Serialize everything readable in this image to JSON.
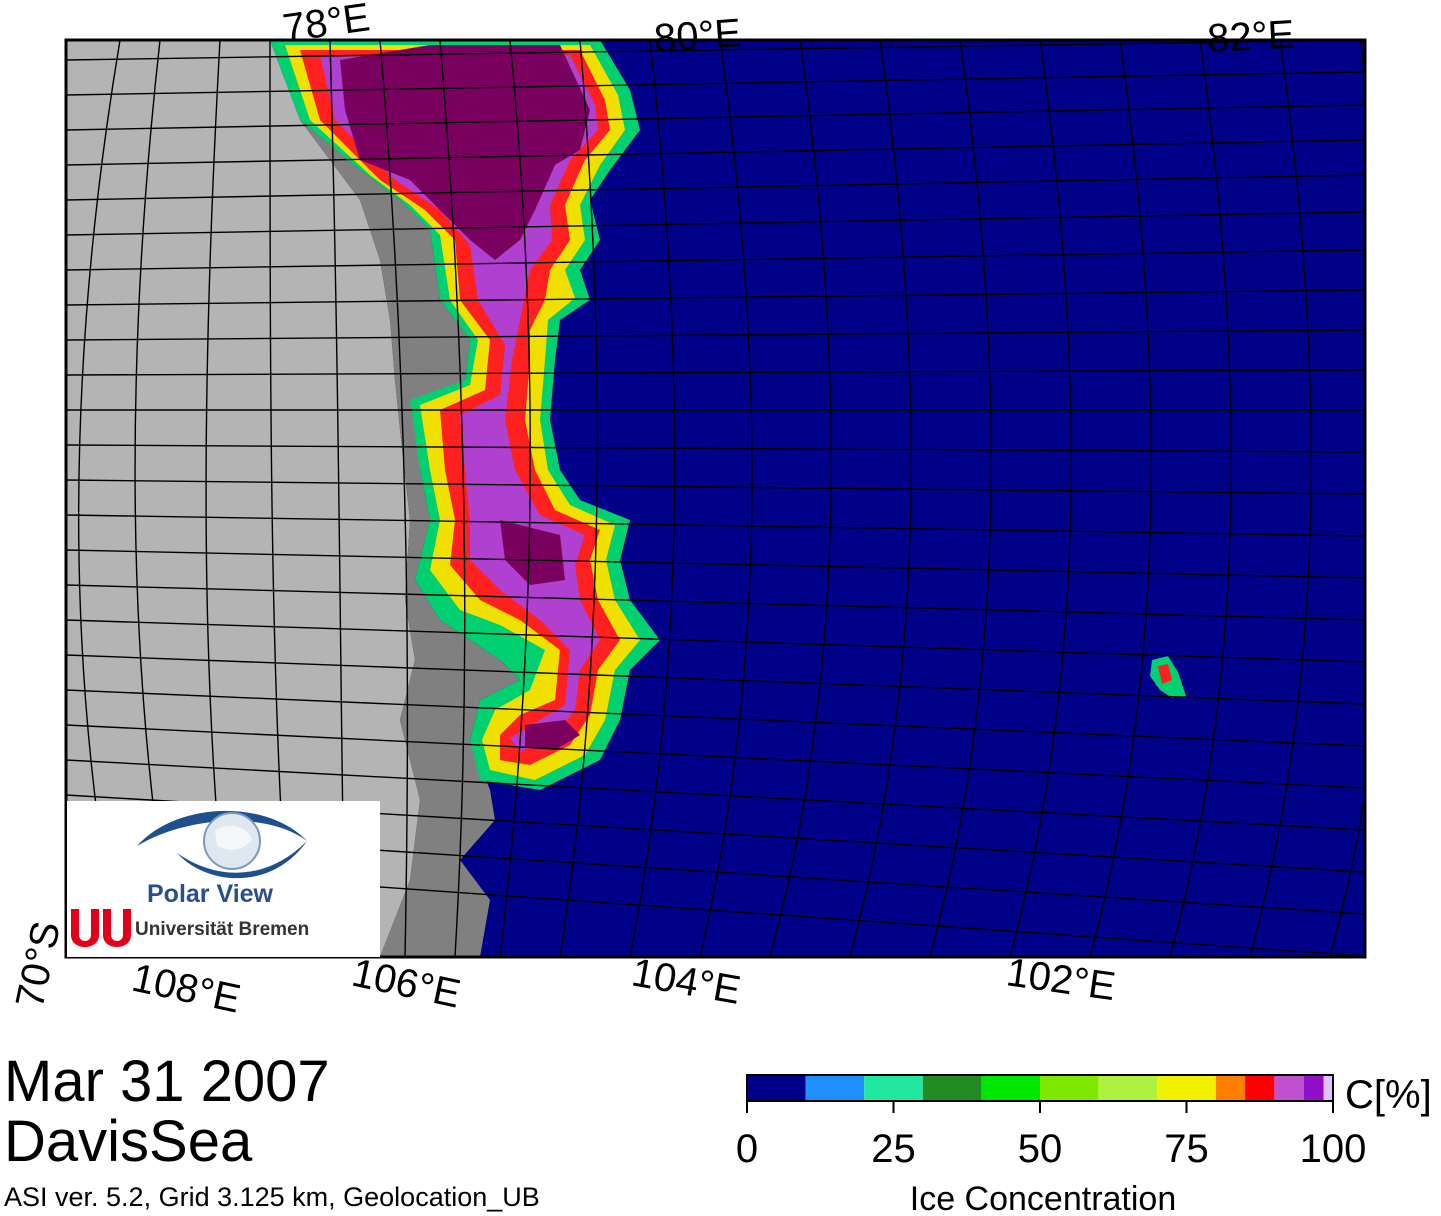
{
  "map": {
    "date": "Mar 31 2007",
    "region": "DavisSea",
    "info": "ASI ver. 5.2,  Grid 3.125 km, Geolocation_UB",
    "top_lon_labels": [
      "78°E",
      "80°E",
      "82°E"
    ],
    "bottom_lon_labels": [
      "108°E",
      "106°E",
      "104°E",
      "102°E"
    ],
    "lat_label": "70°S",
    "colors": {
      "ocean": "#000088",
      "land": "#b4b4b4",
      "ice_shelf": "#808080"
    }
  },
  "logo": {
    "brand": "Polar View",
    "university": "Universität Bremen",
    "icon": "eye-globe-icon",
    "uni_icon": "uni-bremen-u-icon"
  },
  "colorbar": {
    "unit": "C[%]",
    "title": "Ice Concentration",
    "ticks": [
      "0",
      "25",
      "50",
      "75",
      "100"
    ],
    "colors": [
      "#000088",
      "#1e90ff",
      "#20e8a0",
      "#228b22",
      "#00e800",
      "#7fe800",
      "#b0f040",
      "#f0f000",
      "#ff8000",
      "#ff0000",
      "#c050d0",
      "#9010c8",
      "#e0c0ff"
    ]
  }
}
